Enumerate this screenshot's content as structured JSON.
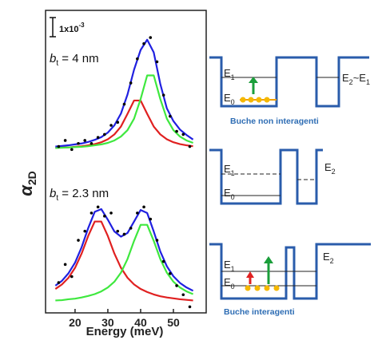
{
  "chart_data": {
    "type": "line",
    "x_label": "Energy (meV)",
    "y_label": [
      "α",
      "2D"
    ],
    "scale_bar": [
      "1x10",
      "-3"
    ],
    "annotations": [
      [
        "b",
        "t",
        " = 4 nm"
      ],
      [
        "b",
        "t",
        " = 2.3 nm"
      ]
    ],
    "xlim": [
      11,
      60
    ],
    "xticks": [
      20,
      30,
      40,
      50
    ],
    "ylim": [
      0,
      10
    ],
    "x": [
      14,
      16,
      18,
      20,
      22,
      24,
      26,
      28,
      30,
      32,
      34,
      36,
      38,
      40,
      42,
      44,
      46,
      48,
      50,
      52,
      54,
      56
    ],
    "series": [
      {
        "color": "#e02020",
        "values": [
          5.45,
          5.47,
          5.47,
          5.49,
          5.51,
          5.54,
          5.58,
          5.64,
          5.74,
          5.9,
          6.16,
          6.58,
          7.02,
          7.02,
          6.58,
          6.16,
          5.9,
          5.74,
          5.64,
          5.58,
          5.54,
          5.51
        ]
      },
      {
        "color": "#3ee83e",
        "values": [
          5.45,
          5.46,
          5.47,
          5.48,
          5.49,
          5.51,
          5.54,
          5.57,
          5.62,
          5.7,
          5.83,
          6.04,
          6.42,
          7.07,
          7.85,
          7.85,
          7.07,
          6.42,
          6.04,
          5.83,
          5.7,
          5.62
        ]
      },
      {
        "color": "#2020e0",
        "values": [
          5.5,
          5.52,
          5.54,
          5.57,
          5.6,
          5.65,
          5.72,
          5.81,
          5.96,
          6.2,
          6.59,
          7.22,
          8.04,
          8.69,
          9.03,
          8.61,
          7.57,
          6.76,
          6.34,
          6.06,
          5.88,
          5.73
        ]
      },
      {
        "color": "#e02020",
        "values": [
          0.79,
          0.94,
          1.16,
          1.49,
          1.96,
          2.54,
          3.02,
          3.02,
          2.54,
          1.96,
          1.49,
          1.16,
          0.94,
          0.79,
          0.69,
          0.61,
          0.55,
          0.51,
          0.48,
          0.45,
          0.43,
          0.41
        ]
      },
      {
        "color": "#3ee83e",
        "values": [
          0.41,
          0.42,
          0.45,
          0.47,
          0.51,
          0.56,
          0.62,
          0.71,
          0.84,
          1.03,
          1.33,
          1.78,
          2.38,
          2.91,
          2.91,
          2.38,
          1.78,
          1.33,
          1.03,
          0.84,
          0.71,
          0.62
        ]
      },
      {
        "color": "#2020e0",
        "values": [
          0.9,
          1.06,
          1.31,
          1.66,
          2.17,
          2.8,
          3.34,
          3.43,
          3.08,
          2.69,
          2.52,
          2.64,
          3.02,
          3.4,
          3.3,
          2.69,
          2.03,
          1.54,
          1.21,
          0.99,
          0.84,
          0.73
        ]
      }
    ],
    "points": [
      {
        "color": "#000000",
        "x": [
          15,
          17,
          19,
          21,
          23,
          25,
          27,
          29,
          31,
          33,
          35,
          37,
          39,
          41,
          43,
          45,
          47,
          49,
          51,
          53,
          55
        ],
        "values": [
          5.5,
          5.7,
          5.4,
          5.6,
          5.7,
          5.6,
          5.8,
          5.9,
          6.2,
          6.3,
          6.9,
          7.6,
          8.4,
          8.9,
          9.1,
          8.3,
          7.2,
          6.5,
          6.0,
          5.9,
          5.5
        ]
      },
      {
        "color": "#000000",
        "x": [
          15,
          17,
          19,
          21,
          23,
          25,
          27,
          29,
          31,
          33,
          35,
          37,
          39,
          41,
          43,
          45,
          47,
          49,
          51,
          53,
          55
        ],
        "values": [
          1.0,
          1.6,
          1.2,
          2.4,
          2.7,
          3.3,
          3.5,
          3.2,
          3.3,
          2.7,
          2.6,
          2.8,
          3.3,
          3.5,
          3.1,
          2.4,
          1.7,
          1.3,
          0.9,
          0.6,
          0.2
        ]
      }
    ]
  },
  "diagrams": [
    {
      "labels": [
        [
          "E",
          "1"
        ],
        [
          "E",
          "2",
          "~E",
          "1"
        ],
        [
          "E",
          "0"
        ]
      ],
      "caption": "Buche non interagenti"
    },
    {
      "labels": [
        [
          "E",
          "1"
        ],
        [
          "E",
          "2"
        ],
        [
          "E",
          "0"
        ]
      ]
    },
    {
      "labels": [
        [
          "E",
          "1"
        ],
        [
          "E",
          "2"
        ],
        [
          "E",
          "0"
        ]
      ],
      "caption": "Buche interagenti"
    }
  ]
}
